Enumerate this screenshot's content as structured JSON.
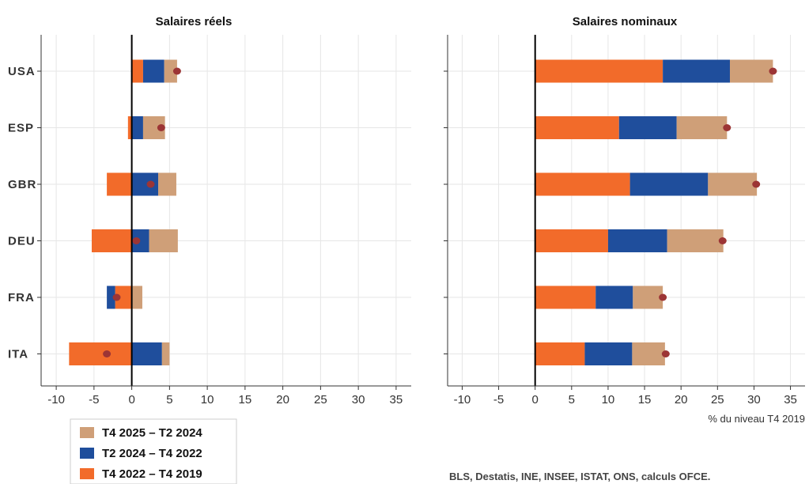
{
  "chart_data": [
    {
      "type": "bar",
      "stacked": true,
      "orientation": "horizontal",
      "title": "Salaires réels",
      "categories": [
        "USA",
        "ESP",
        "GBR",
        "DEU",
        "FRA",
        "ITA"
      ],
      "series": [
        {
          "name": "T4 2022 – T4 2019",
          "color": "#f26b2a",
          "values": [
            1.5,
            -0.5,
            -3.3,
            -5.3,
            -2.2,
            -8.3
          ]
        },
        {
          "name": "T2 2024 – T4 2022",
          "color": "#1f4e9c",
          "values": [
            2.8,
            1.5,
            3.5,
            2.3,
            -1.1,
            4.0
          ]
        },
        {
          "name": "T4 2025 – T2 2024",
          "color": "#cf9f78",
          "values": [
            1.7,
            2.9,
            2.4,
            3.8,
            1.4,
            1.0
          ]
        }
      ],
      "points": {
        "color": "#9c3535",
        "values": [
          6.0,
          3.9,
          2.5,
          0.6,
          -2.0,
          -3.3
        ]
      },
      "xlim": [
        -12,
        37
      ],
      "xticks": [
        -10,
        -5,
        0,
        5,
        10,
        15,
        20,
        25,
        30,
        35
      ],
      "grid": true,
      "legend": "bottom-left"
    },
    {
      "type": "bar",
      "stacked": true,
      "orientation": "horizontal",
      "title": "Salaires nominaux",
      "xlabel": "% du niveau T4 2019",
      "categories": [
        "USA",
        "ESP",
        "GBR",
        "DEU",
        "FRA",
        "ITA"
      ],
      "series": [
        {
          "name": "T4 2022 – T4 2019",
          "color": "#f26b2a",
          "values": [
            17.5,
            11.5,
            13.0,
            10.0,
            8.3,
            6.8
          ]
        },
        {
          "name": "T2 2024 – T4 2022",
          "color": "#1f4e9c",
          "values": [
            9.2,
            7.9,
            10.7,
            8.1,
            5.1,
            6.5
          ]
        },
        {
          "name": "T4 2025 – T2 2024",
          "color": "#cf9f78",
          "values": [
            5.9,
            6.9,
            6.7,
            7.7,
            4.1,
            4.5
          ]
        }
      ],
      "points": {
        "color": "#9c3535",
        "values": [
          32.6,
          26.3,
          30.3,
          25.7,
          17.5,
          17.9
        ]
      },
      "xlim": [
        -12,
        37
      ],
      "xticks": [
        -10,
        -5,
        0,
        5,
        10,
        15,
        20,
        25,
        30,
        35
      ],
      "grid": true
    }
  ],
  "legend": {
    "items": [
      {
        "label": "T4 2025 – T2 2024",
        "color": "#cf9f78"
      },
      {
        "label": "T2 2024 – T4 2022",
        "color": "#1f4e9c"
      },
      {
        "label": "T4 2022 – T4 2019",
        "color": "#f26b2a"
      }
    ]
  },
  "source": "BLS, Destatis, INE, INSEE, ISTAT, ONS, calculs OFCE."
}
